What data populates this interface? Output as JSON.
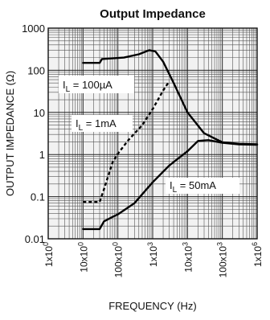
{
  "chart_data": {
    "type": "line",
    "title": "Output Impedance",
    "xlabel": "FREQUENCY (Hz)",
    "ylabel": "OUTPUT IMPEDANCE (Ω)",
    "xscale": "log",
    "yscale": "log",
    "xlim": [
      1,
      1000000
    ],
    "ylim": [
      0.01,
      1000
    ],
    "grid": true,
    "y_tick_values": [
      1000,
      100,
      10,
      1,
      0.1,
      0.01
    ],
    "y_tick_labels": [
      "1000",
      "100",
      "10",
      "1",
      "0.1",
      "0.01"
    ],
    "x_tick_values": [
      1,
      10,
      100,
      1000,
      10000,
      100000,
      1000000
    ],
    "x_tick_labels": [
      {
        "mantissa": "1x10",
        "exp": "0"
      },
      {
        "mantissa": "10x10",
        "exp": "0"
      },
      {
        "mantissa": "100x10",
        "exp": "0"
      },
      {
        "mantissa": "1x10",
        "exp": "3"
      },
      {
        "mantissa": "10x10",
        "exp": "3"
      },
      {
        "mantissa": "100x10",
        "exp": "3"
      },
      {
        "mantissa": "1x10",
        "exp": "6"
      }
    ],
    "series": [
      {
        "label_main": "I",
        "label_sub": "L",
        "label_rest": " = 100µA",
        "dashed": false,
        "points": [
          [
            10,
            150
          ],
          [
            30,
            150
          ],
          [
            35,
            185
          ],
          [
            150,
            200
          ],
          [
            400,
            240
          ],
          [
            800,
            300
          ],
          [
            1200,
            280
          ],
          [
            2000,
            160
          ],
          [
            4000,
            50
          ],
          [
            10000,
            10
          ],
          [
            30000,
            3.2
          ],
          [
            100000,
            1.95
          ],
          [
            300000,
            1.8
          ],
          [
            1000000,
            1.75
          ]
        ]
      },
      {
        "label_main": "I",
        "label_sub": "L",
        "label_rest": " = 1mA",
        "dashed": true,
        "points": [
          [
            10,
            0.075
          ],
          [
            30,
            0.075
          ],
          [
            40,
            0.15
          ],
          [
            70,
            0.65
          ],
          [
            100,
            1.05
          ],
          [
            200,
            2.2
          ],
          [
            500,
            5
          ],
          [
            1000,
            12
          ],
          [
            2000,
            33
          ],
          [
            3000,
            55
          ]
        ]
      },
      {
        "label_main": "I",
        "label_sub": "L",
        "label_rest": " = 50mA",
        "dashed": false,
        "points": [
          [
            10,
            0.017
          ],
          [
            30,
            0.017
          ],
          [
            40,
            0.026
          ],
          [
            70,
            0.033
          ],
          [
            100,
            0.038
          ],
          [
            300,
            0.07
          ],
          [
            1000,
            0.22
          ],
          [
            3000,
            0.55
          ],
          [
            10000,
            1.2
          ],
          [
            20000,
            2.1
          ],
          [
            40000,
            2.2
          ],
          [
            100000,
            1.9
          ],
          [
            300000,
            1.75
          ],
          [
            1000000,
            1.7
          ]
        ]
      }
    ]
  }
}
